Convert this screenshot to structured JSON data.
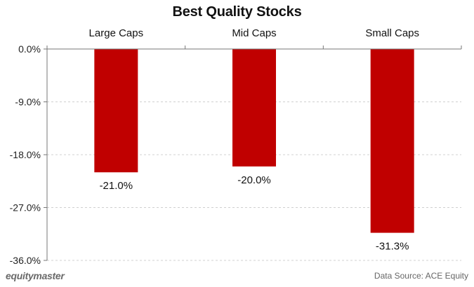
{
  "chart_data": {
    "type": "bar",
    "title": "Best Quality Stocks",
    "categories": [
      "Large Caps",
      "Mid Caps",
      "Small Caps"
    ],
    "values": [
      -21.0,
      -20.0,
      -31.3
    ],
    "value_labels": [
      "-21.0%",
      "-20.0%",
      "-31.3%"
    ],
    "yticks": [
      0,
      -9,
      -18,
      -27,
      -36
    ],
    "ytick_labels": [
      "0.0%",
      "-9.0%",
      "-18.0%",
      "-27.0%",
      "-36.0%"
    ],
    "ylim": [
      -36,
      0
    ],
    "grid": true,
    "category_axis_position": "top",
    "bar_color": "#c00000",
    "grid_color": "#d0d0d0",
    "axis_color": "#777777"
  },
  "footer": {
    "brand": "equitymaster",
    "source": "Data Source: ACE Equity"
  }
}
